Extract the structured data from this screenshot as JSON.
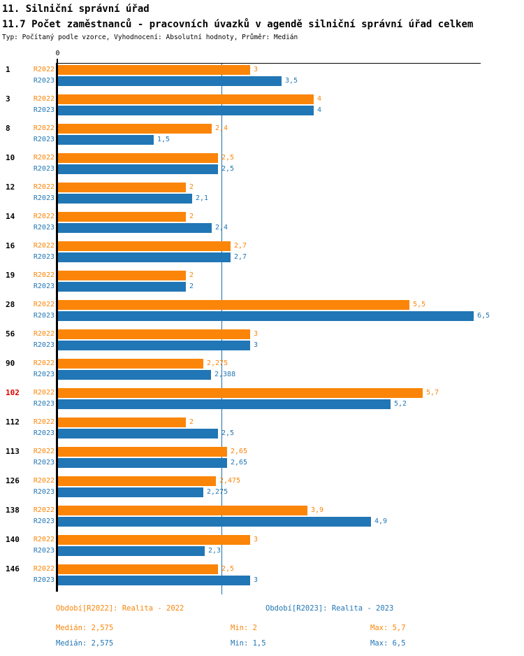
{
  "header": {
    "title": "11. Silniční správní úřad",
    "subtitle": "11.7 Počet zaměstnanců - pracovních úvazků v agendě silniční správní úřad celkem",
    "meta": "Typ: Počítaný podle vzorce, Vyhodnocení: Absolutní hodnoty, Průměr: Medián"
  },
  "colors": {
    "r2022": "#fb8508",
    "r2023": "#2176b5",
    "highlight": "#dd0000",
    "median_line": "#1d6fa8",
    "axis": "#000000"
  },
  "chart_data": {
    "type": "bar",
    "orientation": "horizontal",
    "title": "11.7 Počet zaměstnanců - pracovních úvazků v agendě silniční správní úřad celkem",
    "x_axis_zero_label": "0",
    "xlim": [
      0,
      6.6
    ],
    "grid": false,
    "median_line_value": 2.575,
    "categories": [
      "1",
      "3",
      "8",
      "10",
      "12",
      "14",
      "16",
      "19",
      "28",
      "56",
      "90",
      "102",
      "112",
      "113",
      "126",
      "138",
      "140",
      "146"
    ],
    "highlighted_category": "102",
    "series": [
      {
        "name": "R2022",
        "color": "#fb8508",
        "values": [
          3,
          4,
          2.4,
          2.5,
          2,
          2,
          2.7,
          2,
          5.5,
          3,
          2.275,
          5.7,
          2,
          2.65,
          2.475,
          3.9,
          3,
          2.5
        ],
        "labels": [
          "3",
          "4",
          "2,4",
          "2,5",
          "2",
          "2",
          "2,7",
          "2",
          "5,5",
          "3",
          "2,275",
          "5,7",
          "2",
          "2,65",
          "2,475",
          "3,9",
          "3",
          "2,5"
        ]
      },
      {
        "name": "R2023",
        "color": "#2176b5",
        "values": [
          3.5,
          4,
          1.5,
          2.5,
          2.1,
          2.4,
          2.7,
          2,
          6.5,
          3,
          2.388,
          5.2,
          2.5,
          2.65,
          2.275,
          4.9,
          2.3,
          3
        ],
        "labels": [
          "3,5",
          "4",
          "1,5",
          "2,5",
          "2,1",
          "2,4",
          "2,7",
          "2",
          "6,5",
          "3",
          "2,388",
          "5,2",
          "2,5",
          "2,65",
          "2,275",
          "4,9",
          "2,3",
          "3"
        ]
      }
    ]
  },
  "footer": {
    "legend": [
      {
        "id": "r2022",
        "label": "Období[R2022]: Realita - 2022",
        "color": "#fb8508"
      },
      {
        "id": "r2023",
        "label": "Období[R2023]: Realita - 2023",
        "color": "#2176b5"
      }
    ],
    "stats": [
      {
        "id": "r2022",
        "median": "Medián: 2,575",
        "min": "Min: 2",
        "max": "Max: 5,7",
        "color": "#fb8508"
      },
      {
        "id": "r2023",
        "median": "Medián: 2,575",
        "min": "Min: 1,5",
        "max": "Max: 6,5",
        "color": "#2176b5"
      }
    ]
  }
}
